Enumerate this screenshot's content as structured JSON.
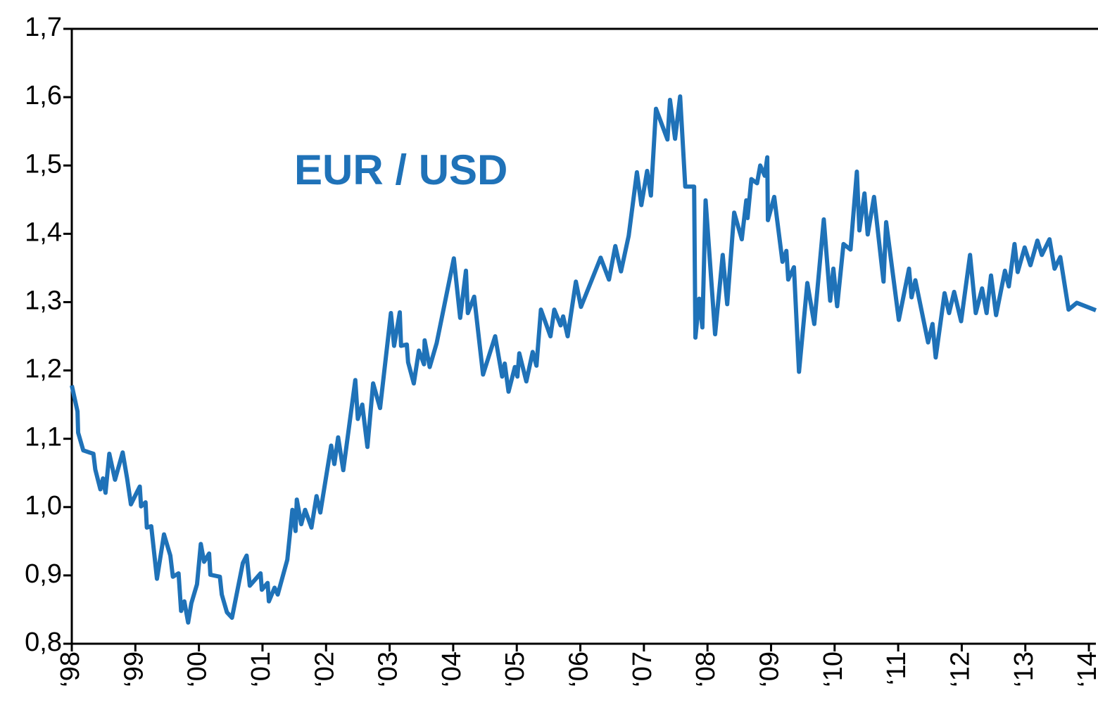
{
  "chart_data": {
    "type": "line",
    "title": "EUR / USD",
    "color": "#1f72b8",
    "xlim": [
      1998,
      2014.11
    ],
    "ylim": [
      0.8,
      1.7
    ],
    "xticks": [
      {
        "value": 1998,
        "label": "‘98"
      },
      {
        "value": 1999,
        "label": "‘99"
      },
      {
        "value": 2000,
        "label": "‘00"
      },
      {
        "value": 2001,
        "label": "‘01"
      },
      {
        "value": 2002,
        "label": "‘02"
      },
      {
        "value": 2003,
        "label": "‘03"
      },
      {
        "value": 2004,
        "label": "‘04"
      },
      {
        "value": 2005,
        "label": "‘05"
      },
      {
        "value": 2006,
        "label": "‘06"
      },
      {
        "value": 2007,
        "label": "‘07"
      },
      {
        "value": 2008,
        "label": "‘08"
      },
      {
        "value": 2009,
        "label": "‘09"
      },
      {
        "value": 2010,
        "label": "‘10"
      },
      {
        "value": 2011,
        "label": "‘11"
      },
      {
        "value": 2012,
        "label": "‘12"
      },
      {
        "value": 2013,
        "label": "‘13"
      },
      {
        "value": 2014,
        "label": "‘14"
      }
    ],
    "yticks": [
      {
        "value": 0.8,
        "label": "0,8"
      },
      {
        "value": 0.9,
        "label": "0,9"
      },
      {
        "value": 1.0,
        "label": "1,0"
      },
      {
        "value": 1.1,
        "label": "1,1"
      },
      {
        "value": 1.2,
        "label": "1,2"
      },
      {
        "value": 1.3,
        "label": "1,3"
      },
      {
        "value": 1.4,
        "label": "1,4"
      },
      {
        "value": 1.5,
        "label": "1,5"
      },
      {
        "value": 1.6,
        "label": "1,6"
      },
      {
        "value": 1.7,
        "label": "1,7"
      }
    ],
    "x": [
      1998.0,
      1998.09,
      1998.1,
      1998.18,
      1998.34,
      1998.37,
      1998.45,
      1998.49,
      1998.53,
      1998.59,
      1998.68,
      1998.8,
      1998.87,
      1998.93,
      1999.02,
      1999.07,
      1999.09,
      1999.16,
      1999.18,
      1999.25,
      1999.34,
      1999.45,
      1999.55,
      1999.59,
      1999.68,
      1999.72,
      1999.77,
      1999.83,
      1999.88,
      1999.97,
      2000.03,
      2000.08,
      2000.16,
      2000.18,
      2000.33,
      2000.36,
      2000.44,
      2000.52,
      2000.69,
      2000.75,
      2000.8,
      2000.97,
      2000.99,
      2001.08,
      2001.1,
      2001.19,
      2001.24,
      2001.39,
      2001.47,
      2001.52,
      2001.54,
      2001.61,
      2001.67,
      2001.77,
      2001.85,
      2001.91,
      2002.08,
      2002.13,
      2002.19,
      2002.27,
      2002.46,
      2002.5,
      2002.57,
      2002.65,
      2002.74,
      2002.85,
      2003.02,
      2003.07,
      2003.16,
      2003.18,
      2003.27,
      2003.29,
      2003.38,
      2003.46,
      2003.54,
      2003.55,
      2003.63,
      2003.74,
      2004.01,
      2004.11,
      2004.2,
      2004.23,
      2004.33,
      2004.47,
      2004.66,
      2004.77,
      2004.81,
      2004.87,
      2004.97,
      2005.01,
      2005.04,
      2005.15,
      2005.25,
      2005.31,
      2005.38,
      2005.53,
      2005.59,
      2005.69,
      2005.73,
      2005.8,
      2005.93,
      2006.01,
      2006.32,
      2006.45,
      2006.55,
      2006.64,
      2006.76,
      2006.89,
      2006.96,
      2007.05,
      2007.11,
      2007.19,
      2007.37,
      2007.41,
      2007.49,
      2007.57,
      2007.65,
      2007.79,
      2007.81,
      2007.87,
      2007.92,
      2007.97,
      2008.12,
      2008.24,
      2008.31,
      2008.42,
      2008.54,
      2008.61,
      2008.63,
      2008.69,
      2008.78,
      2008.83,
      2008.9,
      2008.94,
      2008.95,
      2009.05,
      2009.18,
      2009.24,
      2009.27,
      2009.36,
      2009.44,
      2009.57,
      2009.68,
      2009.83,
      2009.93,
      2009.98,
      2010.04,
      2010.14,
      2010.25,
      2010.35,
      2010.39,
      2010.47,
      2010.52,
      2010.62,
      2010.77,
      2010.81,
      2011.01,
      2011.17,
      2011.21,
      2011.27,
      2011.47,
      2011.54,
      2011.59,
      2011.73,
      2011.8,
      2011.88,
      2011.99,
      2012.13,
      2012.22,
      2012.32,
      2012.39,
      2012.46,
      2012.54,
      2012.68,
      2012.74,
      2012.83,
      2012.88,
      2012.99,
      2013.08,
      2013.19,
      2013.26,
      2013.38,
      2013.46,
      2013.55,
      2013.68,
      2013.81,
      2014.11
    ],
    "values": [
      1.178,
      1.14,
      1.109,
      1.083,
      1.078,
      1.055,
      1.026,
      1.042,
      1.021,
      1.078,
      1.04,
      1.08,
      1.042,
      1.004,
      1.021,
      1.03,
      1.001,
      1.007,
      0.97,
      0.972,
      0.895,
      0.96,
      0.929,
      0.898,
      0.903,
      0.848,
      0.862,
      0.831,
      0.859,
      0.887,
      0.946,
      0.92,
      0.932,
      0.901,
      0.898,
      0.872,
      0.846,
      0.838,
      0.918,
      0.929,
      0.885,
      0.903,
      0.879,
      0.889,
      0.862,
      0.882,
      0.872,
      0.923,
      0.996,
      0.965,
      1.011,
      0.975,
      0.996,
      0.97,
      1.016,
      0.992,
      1.09,
      1.063,
      1.102,
      1.054,
      1.186,
      1.129,
      1.15,
      1.088,
      1.181,
      1.145,
      1.284,
      1.236,
      1.285,
      1.236,
      1.238,
      1.212,
      1.181,
      1.229,
      1.209,
      1.244,
      1.205,
      1.24,
      1.364,
      1.277,
      1.346,
      1.284,
      1.308,
      1.194,
      1.25,
      1.191,
      1.21,
      1.169,
      1.205,
      1.191,
      1.225,
      1.184,
      1.227,
      1.207,
      1.289,
      1.25,
      1.289,
      1.266,
      1.279,
      1.25,
      1.33,
      1.293,
      1.365,
      1.333,
      1.382,
      1.345,
      1.397,
      1.49,
      1.442,
      1.492,
      1.456,
      1.583,
      1.538,
      1.596,
      1.539,
      1.601,
      1.469,
      1.469,
      1.248,
      1.305,
      1.263,
      1.449,
      1.253,
      1.369,
      1.297,
      1.431,
      1.392,
      1.449,
      1.423,
      1.48,
      1.474,
      1.5,
      1.485,
      1.512,
      1.42,
      1.454,
      1.359,
      1.375,
      1.333,
      1.351,
      1.198,
      1.328,
      1.268,
      1.421,
      1.302,
      1.349,
      1.294,
      1.385,
      1.377,
      1.491,
      1.405,
      1.459,
      1.399,
      1.454,
      1.33,
      1.417,
      1.274,
      1.349,
      1.307,
      1.332,
      1.241,
      1.268,
      1.219,
      1.313,
      1.284,
      1.315,
      1.272,
      1.369,
      1.284,
      1.32,
      1.284,
      1.339,
      1.281,
      1.346,
      1.323,
      1.385,
      1.344,
      1.38,
      1.354,
      1.39,
      1.369,
      1.392,
      1.349,
      1.366,
      1.289,
      1.299,
      1.288
    ]
  }
}
